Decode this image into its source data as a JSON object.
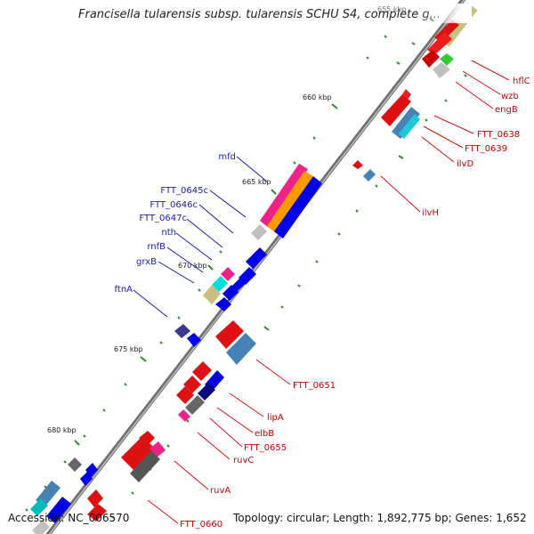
{
  "title": "Francisella tularensis subsp. tularensis SCHU S4, complete g...",
  "footer": {
    "accession": "Accession: NC_006570",
    "stats": "Topology: circular; Length: 1,892,775 bp; Genes: 1,652"
  },
  "scale_labels": [
    "655 kbp",
    "660 kbp",
    "665 kbp",
    "670 kbp",
    "675 kbp",
    "680 kbp"
  ],
  "gene_labels": {
    "hflC": "hflC",
    "wzb": "wzb",
    "engB": "engB",
    "FTT_0638": "FTT_0638",
    "FTT_0639": "FTT_0639",
    "ilvD": "ilvD",
    "ilvH": "ilvH",
    "mfd": "mfd",
    "FTT_0645c": "FTT_0645c",
    "FTT_0646c": "FTT_0646c",
    "FTT_0647c": "FTT_0647c",
    "nth": "nth",
    "rnfB": "rnfB",
    "grxB": "grxB",
    "ftnA": "ftnA",
    "FTT_0651": "FTT_0651",
    "lipA": "lipA",
    "elbB": "elbB",
    "FTT_0655": "FTT_0655",
    "ruvC": "ruvC",
    "ruvA": "ruvA",
    "FTT_0660": "FTT_0660"
  },
  "colors": {
    "forward_label": "#cc0000",
    "reverse_label": "#1a1ab4",
    "backbone": "#808080",
    "tick": "#2e8b2e"
  }
}
